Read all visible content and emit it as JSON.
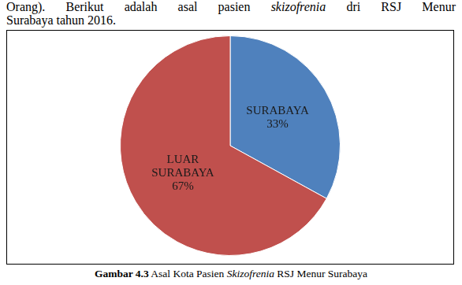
{
  "paragraph": [
    [
      {
        "text": "Orang). Berikut adalah asal pasien "
      },
      {
        "text": "skizofrenia",
        "italic": true
      },
      {
        "text": " dri RSJ Menur"
      }
    ],
    [
      {
        "text": "Surabaya tahun 2016."
      }
    ]
  ],
  "caption": [
    {
      "text": "Gambar 4.3",
      "bold": true
    },
    {
      "text": " Asal Kota Pasien "
    },
    {
      "text": "Skizofrenia",
      "italic": true
    },
    {
      "text": " RSJ Menur Surabaya"
    }
  ],
  "chart_data": {
    "type": "pie",
    "categories": [
      "SURABAYA",
      "LUAR SURABAYA"
    ],
    "values": [
      33,
      67
    ],
    "value_labels": [
      "33%",
      "67%"
    ],
    "colors": [
      "#4f81bd",
      "#c0504d"
    ],
    "data_labels": true,
    "legend": false
  }
}
